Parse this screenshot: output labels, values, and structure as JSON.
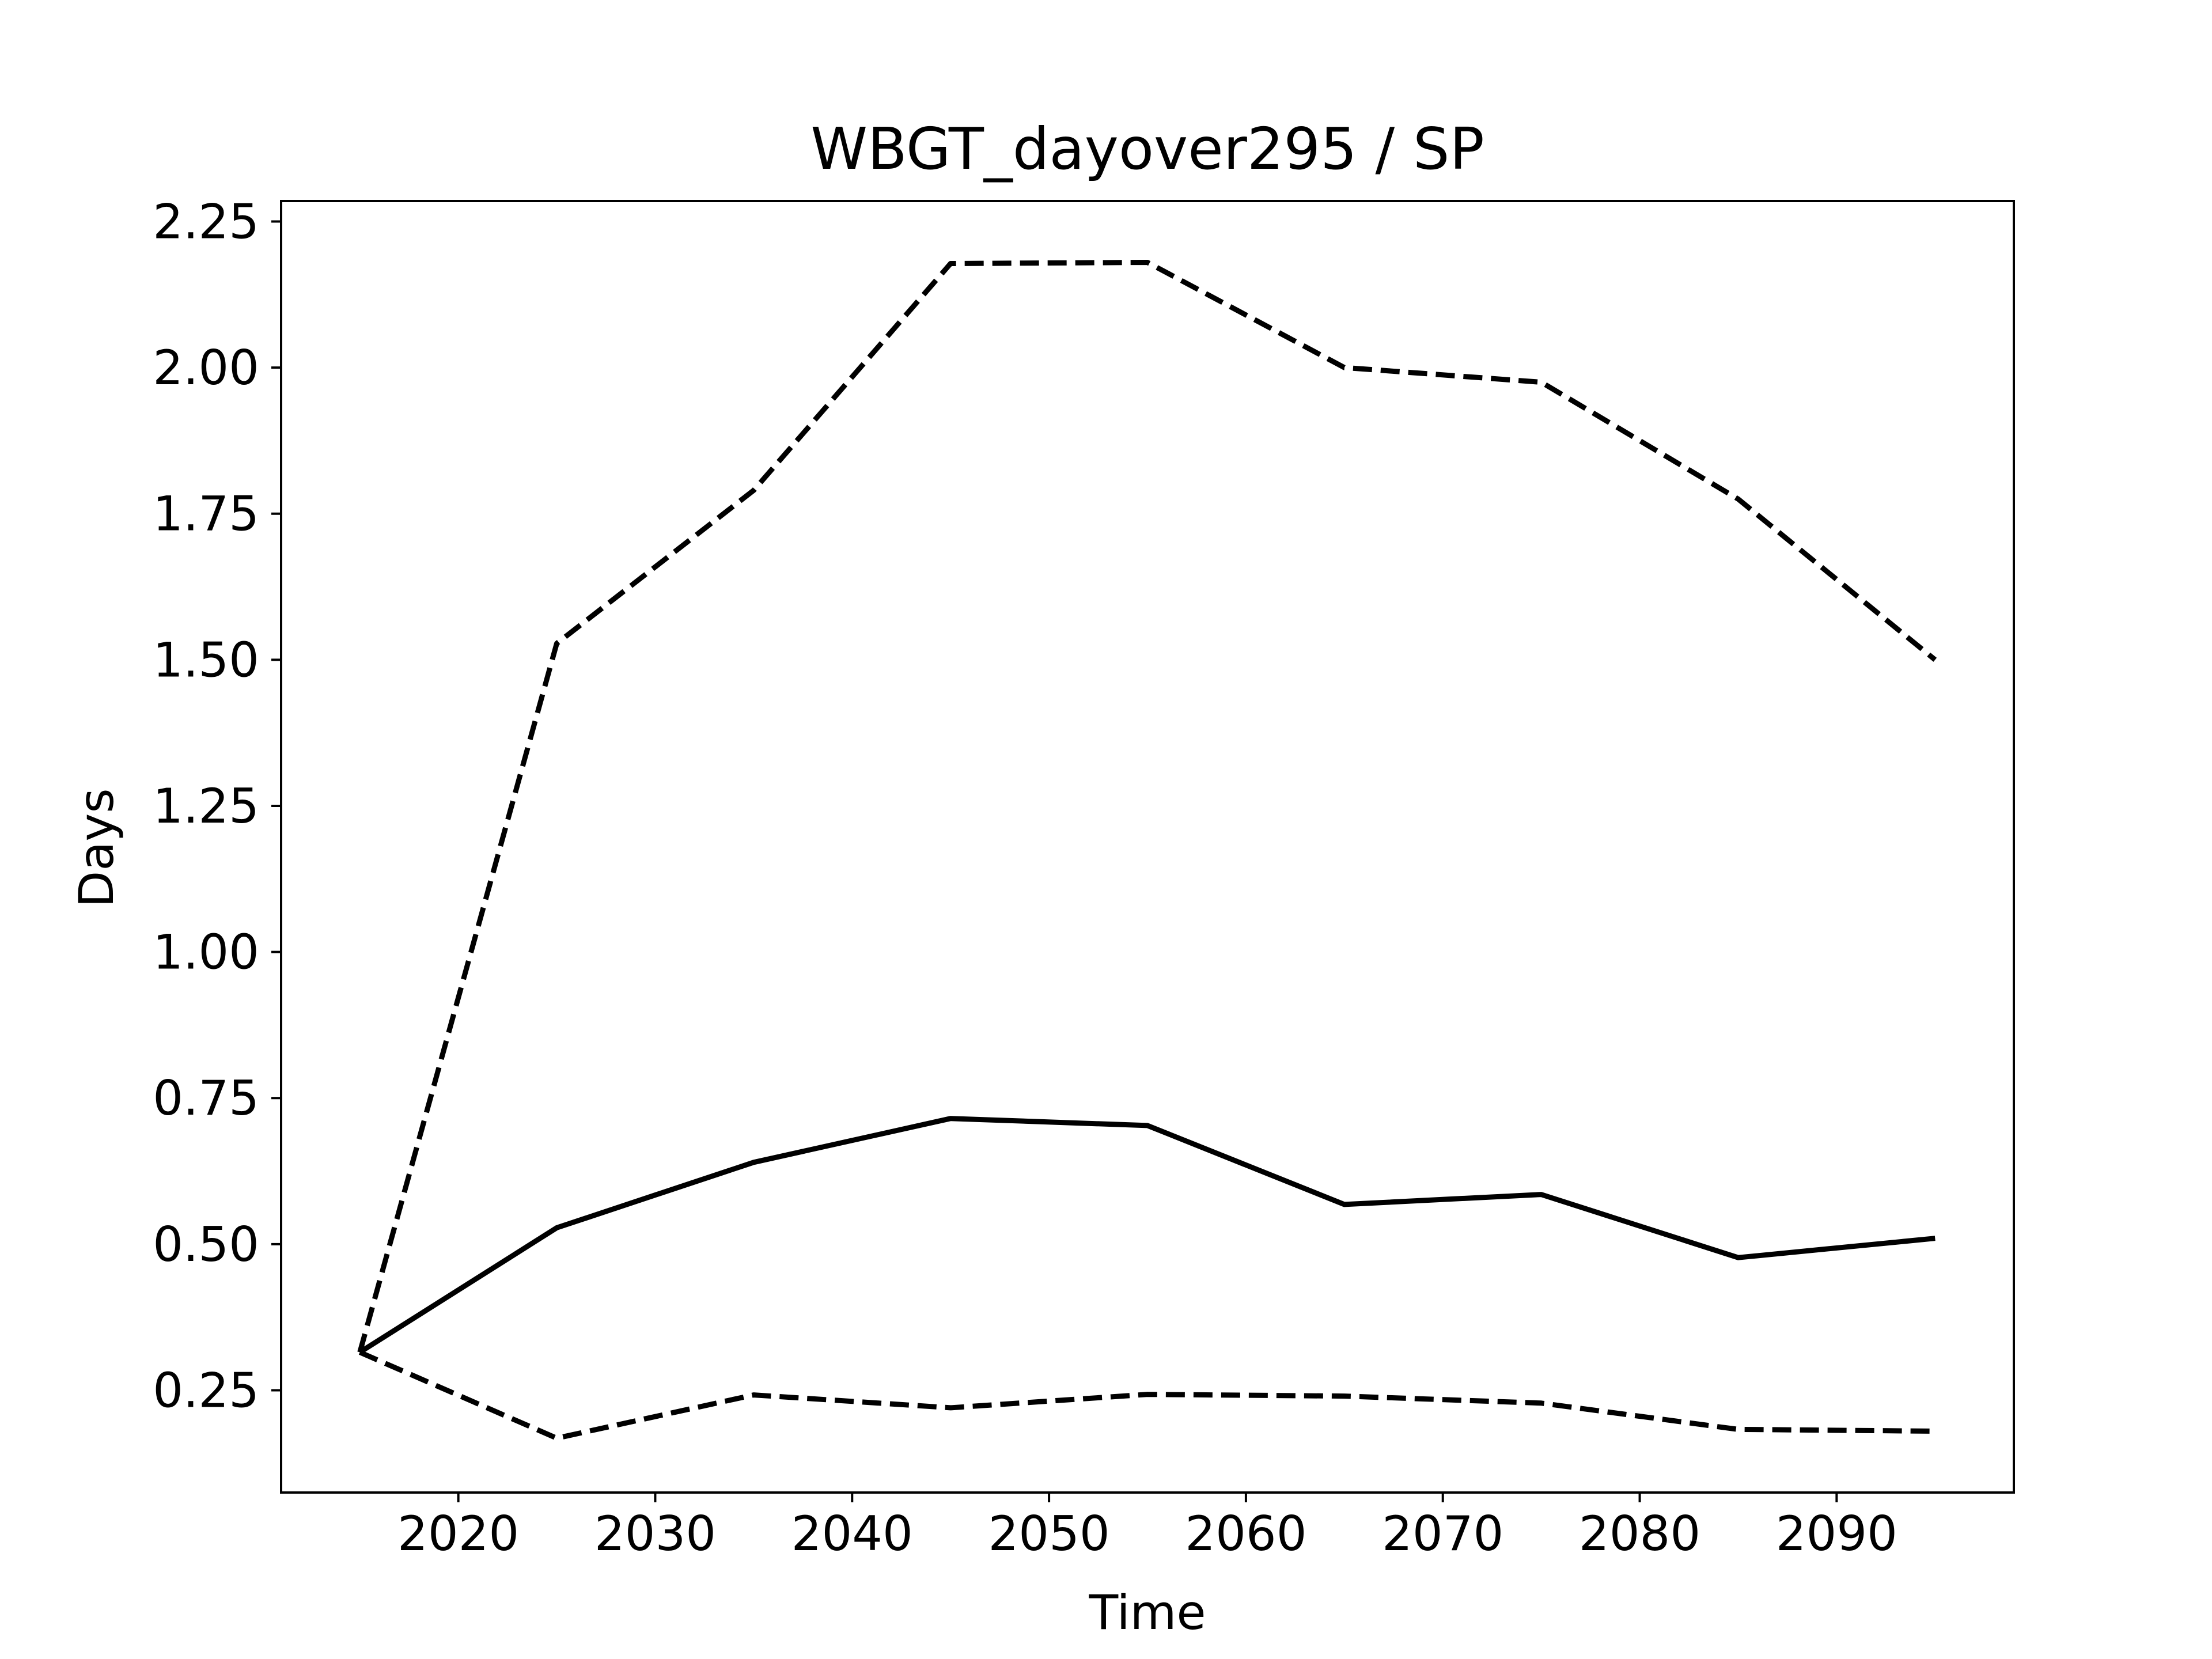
{
  "chart_data": {
    "type": "line",
    "title": "WBGT_dayover295 / SP",
    "xlabel": "Time",
    "ylabel": "Days",
    "xlim": [
      2011,
      2099
    ],
    "ylim": [
      0.075,
      2.285
    ],
    "xticks": [
      2020,
      2030,
      2040,
      2050,
      2060,
      2070,
      2080,
      2090
    ],
    "xtick_labels": [
      "2020",
      "2030",
      "2040",
      "2050",
      "2060",
      "2070",
      "2080",
      "2090"
    ],
    "yticks": [
      0.25,
      0.5,
      0.75,
      1.0,
      1.25,
      1.5,
      1.75,
      2.0,
      2.25
    ],
    "ytick_labels": [
      "0.25",
      "0.50",
      "0.75",
      "1.00",
      "1.25",
      "1.50",
      "1.75",
      "2.00",
      "2.25"
    ],
    "grid": false,
    "x": [
      2015,
      2025,
      2035,
      2045,
      2055,
      2065,
      2075,
      2085,
      2095
    ],
    "series": [
      {
        "style": "solid",
        "color": "#000000",
        "values": [
          0.315,
          0.528,
          0.64,
          0.715,
          0.703,
          0.568,
          0.585,
          0.477,
          0.51
        ]
      },
      {
        "style": "dashed",
        "color": "#000000",
        "values": [
          0.315,
          1.528,
          1.79,
          2.178,
          2.18,
          2.0,
          1.975,
          1.775,
          1.5
        ]
      },
      {
        "style": "dashed",
        "color": "#000000",
        "values": [
          0.315,
          0.168,
          0.242,
          0.22,
          0.243,
          0.24,
          0.228,
          0.183,
          0.18
        ]
      }
    ]
  }
}
